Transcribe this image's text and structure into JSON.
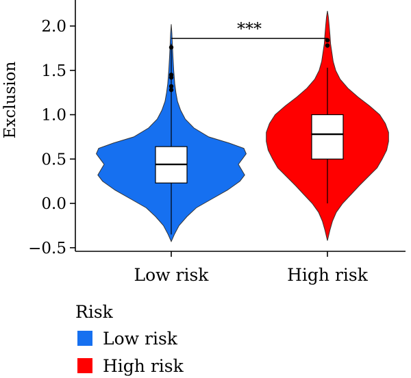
{
  "chart_data": {
    "type": "violin",
    "title": "",
    "xlabel": "",
    "ylabel": "Exclusion",
    "ylim": [
      -0.55,
      2.25
    ],
    "yticks": [
      -0.5,
      0.0,
      0.5,
      1.0,
      1.5,
      2.0
    ],
    "ytick_labels": [
      "−0.5",
      "0.0",
      "0.5",
      "1.0",
      "1.5",
      "2.0"
    ],
    "categories": [
      "Low risk",
      "High risk"
    ],
    "colors": {
      "Low risk": "#1670f0",
      "High risk": "#ff0000"
    },
    "grid": false,
    "legend": {
      "title": "Risk",
      "position": "bottom-left",
      "entries": [
        "Low risk",
        "High risk"
      ]
    },
    "significance": {
      "label": "***",
      "between": [
        "Low risk",
        "High risk"
      ],
      "y": 1.86
    },
    "series": [
      {
        "name": "Low risk",
        "color": "#1670f0",
        "violin_range": [
          -0.43,
          2.02
        ],
        "box": {
          "q1": 0.23,
          "median": 0.44,
          "q3": 0.64,
          "whisker_low": -0.35,
          "whisker_high": 1.8
        },
        "outliers": [
          1.28,
          1.32,
          1.42,
          1.45,
          1.76
        ],
        "density": [
          [
            -0.43,
            0.0
          ],
          [
            -0.35,
            0.04
          ],
          [
            -0.25,
            0.1
          ],
          [
            -0.15,
            0.2
          ],
          [
            -0.05,
            0.32
          ],
          [
            0.05,
            0.52
          ],
          [
            0.15,
            0.72
          ],
          [
            0.25,
            0.88
          ],
          [
            0.32,
            0.94
          ],
          [
            0.38,
            0.9
          ],
          [
            0.44,
            0.86
          ],
          [
            0.5,
            0.91
          ],
          [
            0.56,
            0.96
          ],
          [
            0.62,
            0.93
          ],
          [
            0.68,
            0.74
          ],
          [
            0.75,
            0.48
          ],
          [
            0.85,
            0.29
          ],
          [
            0.95,
            0.18
          ],
          [
            1.05,
            0.12
          ],
          [
            1.15,
            0.08
          ],
          [
            1.25,
            0.06
          ],
          [
            1.35,
            0.045
          ],
          [
            1.5,
            0.032
          ],
          [
            1.65,
            0.022
          ],
          [
            1.8,
            0.014
          ],
          [
            1.92,
            0.008
          ],
          [
            2.02,
            0.0
          ]
        ]
      },
      {
        "name": "High risk",
        "color": "#ff0000",
        "violin_range": [
          -0.42,
          2.17
        ],
        "box": {
          "q1": 0.5,
          "median": 0.78,
          "q3": 1.0,
          "whisker_low": 0.0,
          "whisker_high": 1.53
        },
        "outliers": [
          1.78,
          1.84
        ],
        "density": [
          [
            -0.42,
            0.0
          ],
          [
            -0.3,
            0.04
          ],
          [
            -0.2,
            0.08
          ],
          [
            -0.1,
            0.14
          ],
          [
            0.0,
            0.24
          ],
          [
            0.1,
            0.37
          ],
          [
            0.2,
            0.5
          ],
          [
            0.3,
            0.64
          ],
          [
            0.4,
            0.78
          ],
          [
            0.5,
            0.86
          ],
          [
            0.6,
            0.93
          ],
          [
            0.7,
            0.96
          ],
          [
            0.8,
            0.96
          ],
          [
            0.9,
            0.91
          ],
          [
            1.0,
            0.82
          ],
          [
            1.1,
            0.66
          ],
          [
            1.2,
            0.48
          ],
          [
            1.3,
            0.32
          ],
          [
            1.4,
            0.2
          ],
          [
            1.5,
            0.13
          ],
          [
            1.6,
            0.09
          ],
          [
            1.7,
            0.07
          ],
          [
            1.8,
            0.05
          ],
          [
            1.9,
            0.04
          ],
          [
            2.0,
            0.028
          ],
          [
            2.1,
            0.015
          ],
          [
            2.17,
            0.0
          ]
        ]
      }
    ]
  }
}
